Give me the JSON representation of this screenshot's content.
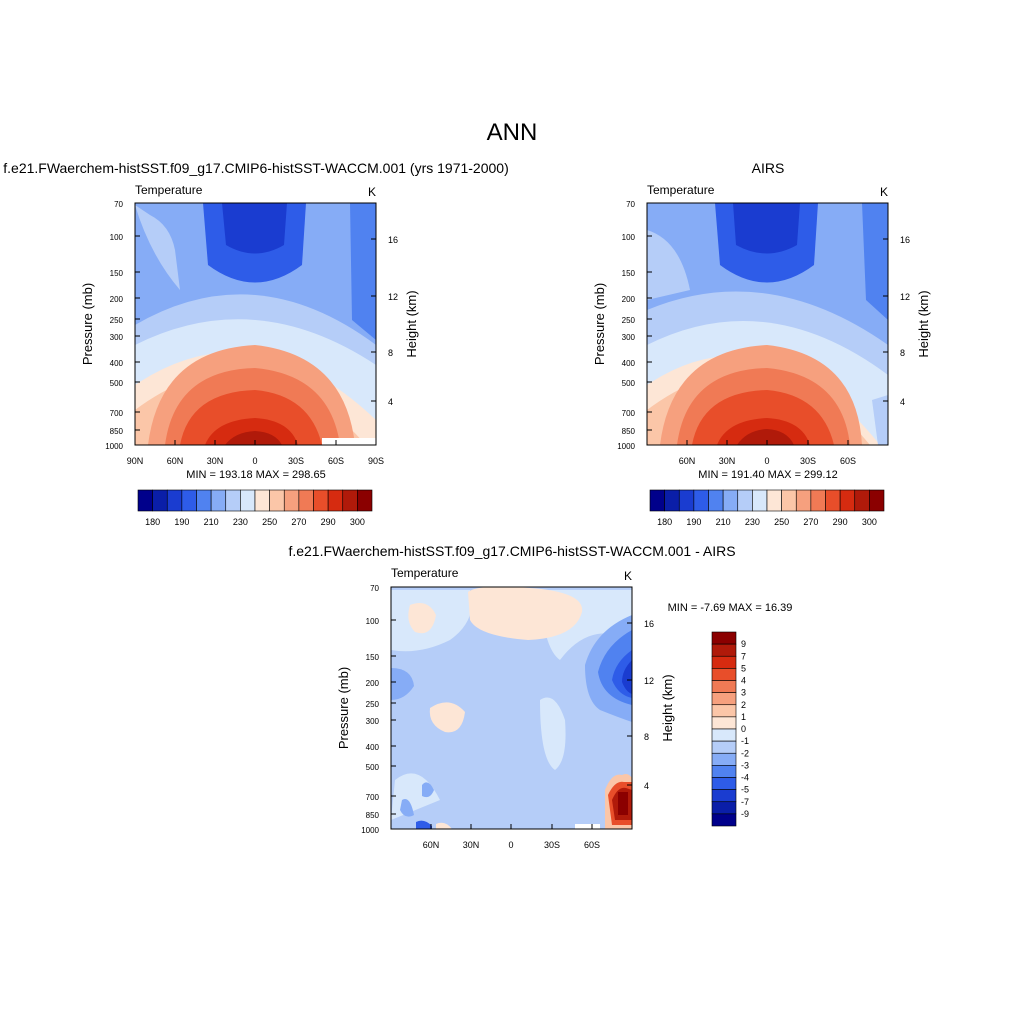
{
  "figure": {
    "title": "ANN",
    "model_case": "f.e21.FWaerchem-histSST.f09_g17.CMIP6-histSST-WACCM.001 (yrs 1971-2000)",
    "obs_case": "AIRS",
    "diff_case": "f.e21.FWaerchem-histSST.f09_g17.CMIP6-histSST-WACCM.001 - AIRS"
  },
  "chart_data": [
    {
      "type": "heatmap",
      "panel": "model",
      "title": "f.e21.FWaerchem-histSST.f09_g17.CMIP6-histSST-WACCM.001 (yrs 1971-2000)",
      "variable": "Temperature",
      "units": "K",
      "ylabel": "Pressure (mb)",
      "y2label": "Height (km)",
      "x_ticks": [
        "90N",
        "60N",
        "30N",
        "0",
        "30S",
        "60S",
        "90S"
      ],
      "y_ticks": [
        "70",
        "100",
        "150",
        "200",
        "250",
        "300",
        "400",
        "500",
        "700",
        "850",
        "1000"
      ],
      "y2_ticks": [
        "16",
        "12",
        "8",
        "4"
      ],
      "stats": "MIN = 193.18  MAX = 298.65",
      "min": 193.18,
      "max": 298.65,
      "colorbar_labels": [
        "180",
        "190",
        "210",
        "230",
        "250",
        "270",
        "290",
        "300"
      ],
      "colorbar_colors": [
        "#00008b",
        "#0a1ea8",
        "#1a3cd0",
        "#2e5ce8",
        "#5082f0",
        "#86acf6",
        "#b5cdf8",
        "#d8e8fb",
        "#fde6d6",
        "#fbc6a8",
        "#f6a07e",
        "#f07a55",
        "#e84e2a",
        "#d62b10",
        "#b01a0a",
        "#8b0000"
      ]
    },
    {
      "type": "heatmap",
      "panel": "obs",
      "title": "AIRS",
      "variable": "Temperature",
      "units": "K",
      "ylabel": "Pressure (mb)",
      "y2label": "Height (km)",
      "x_ticks": [
        "60N",
        "30N",
        "0",
        "30S",
        "60S"
      ],
      "y_ticks": [
        "70",
        "100",
        "150",
        "200",
        "250",
        "300",
        "400",
        "500",
        "700",
        "850",
        "1000"
      ],
      "y2_ticks": [
        "16",
        "12",
        "8",
        "4"
      ],
      "stats": "MIN = 191.40  MAX = 299.12",
      "min": 191.4,
      "max": 299.12,
      "colorbar_labels": [
        "180",
        "190",
        "210",
        "230",
        "250",
        "270",
        "290",
        "300"
      ],
      "colorbar_colors": [
        "#00008b",
        "#0a1ea8",
        "#1a3cd0",
        "#2e5ce8",
        "#5082f0",
        "#86acf6",
        "#b5cdf8",
        "#d8e8fb",
        "#fde6d6",
        "#fbc6a8",
        "#f6a07e",
        "#f07a55",
        "#e84e2a",
        "#d62b10",
        "#b01a0a",
        "#8b0000"
      ]
    },
    {
      "type": "heatmap",
      "panel": "diff",
      "title": "f.e21.FWaerchem-histSST.f09_g17.CMIP6-histSST-WACCM.001 - AIRS",
      "variable": "Temperature",
      "units": "K",
      "ylabel": "Pressure (mb)",
      "y2label": "Height (km)",
      "x_ticks": [
        "60N",
        "30N",
        "0",
        "30S",
        "60S"
      ],
      "y_ticks": [
        "70",
        "100",
        "150",
        "200",
        "250",
        "300",
        "400",
        "500",
        "700",
        "850",
        "1000"
      ],
      "y2_ticks": [
        "16",
        "12",
        "8",
        "4"
      ],
      "stats": "MIN =  -7.69  MAX =  16.39",
      "min": -7.69,
      "max": 16.39,
      "colorbar_labels": [
        "9",
        "7",
        "5",
        "4",
        "3",
        "2",
        "1",
        "0",
        "-1",
        "-2",
        "-3",
        "-4",
        "-5",
        "-7",
        "-9"
      ],
      "colorbar_colors": [
        "#8b0000",
        "#b01a0a",
        "#d62b10",
        "#e84e2a",
        "#f07a55",
        "#f6a07e",
        "#fbc6a8",
        "#fde6d6",
        "#d8e8fb",
        "#b5cdf8",
        "#86acf6",
        "#5082f0",
        "#2e5ce8",
        "#1a3cd0",
        "#0a1ea8",
        "#00008b"
      ]
    }
  ]
}
